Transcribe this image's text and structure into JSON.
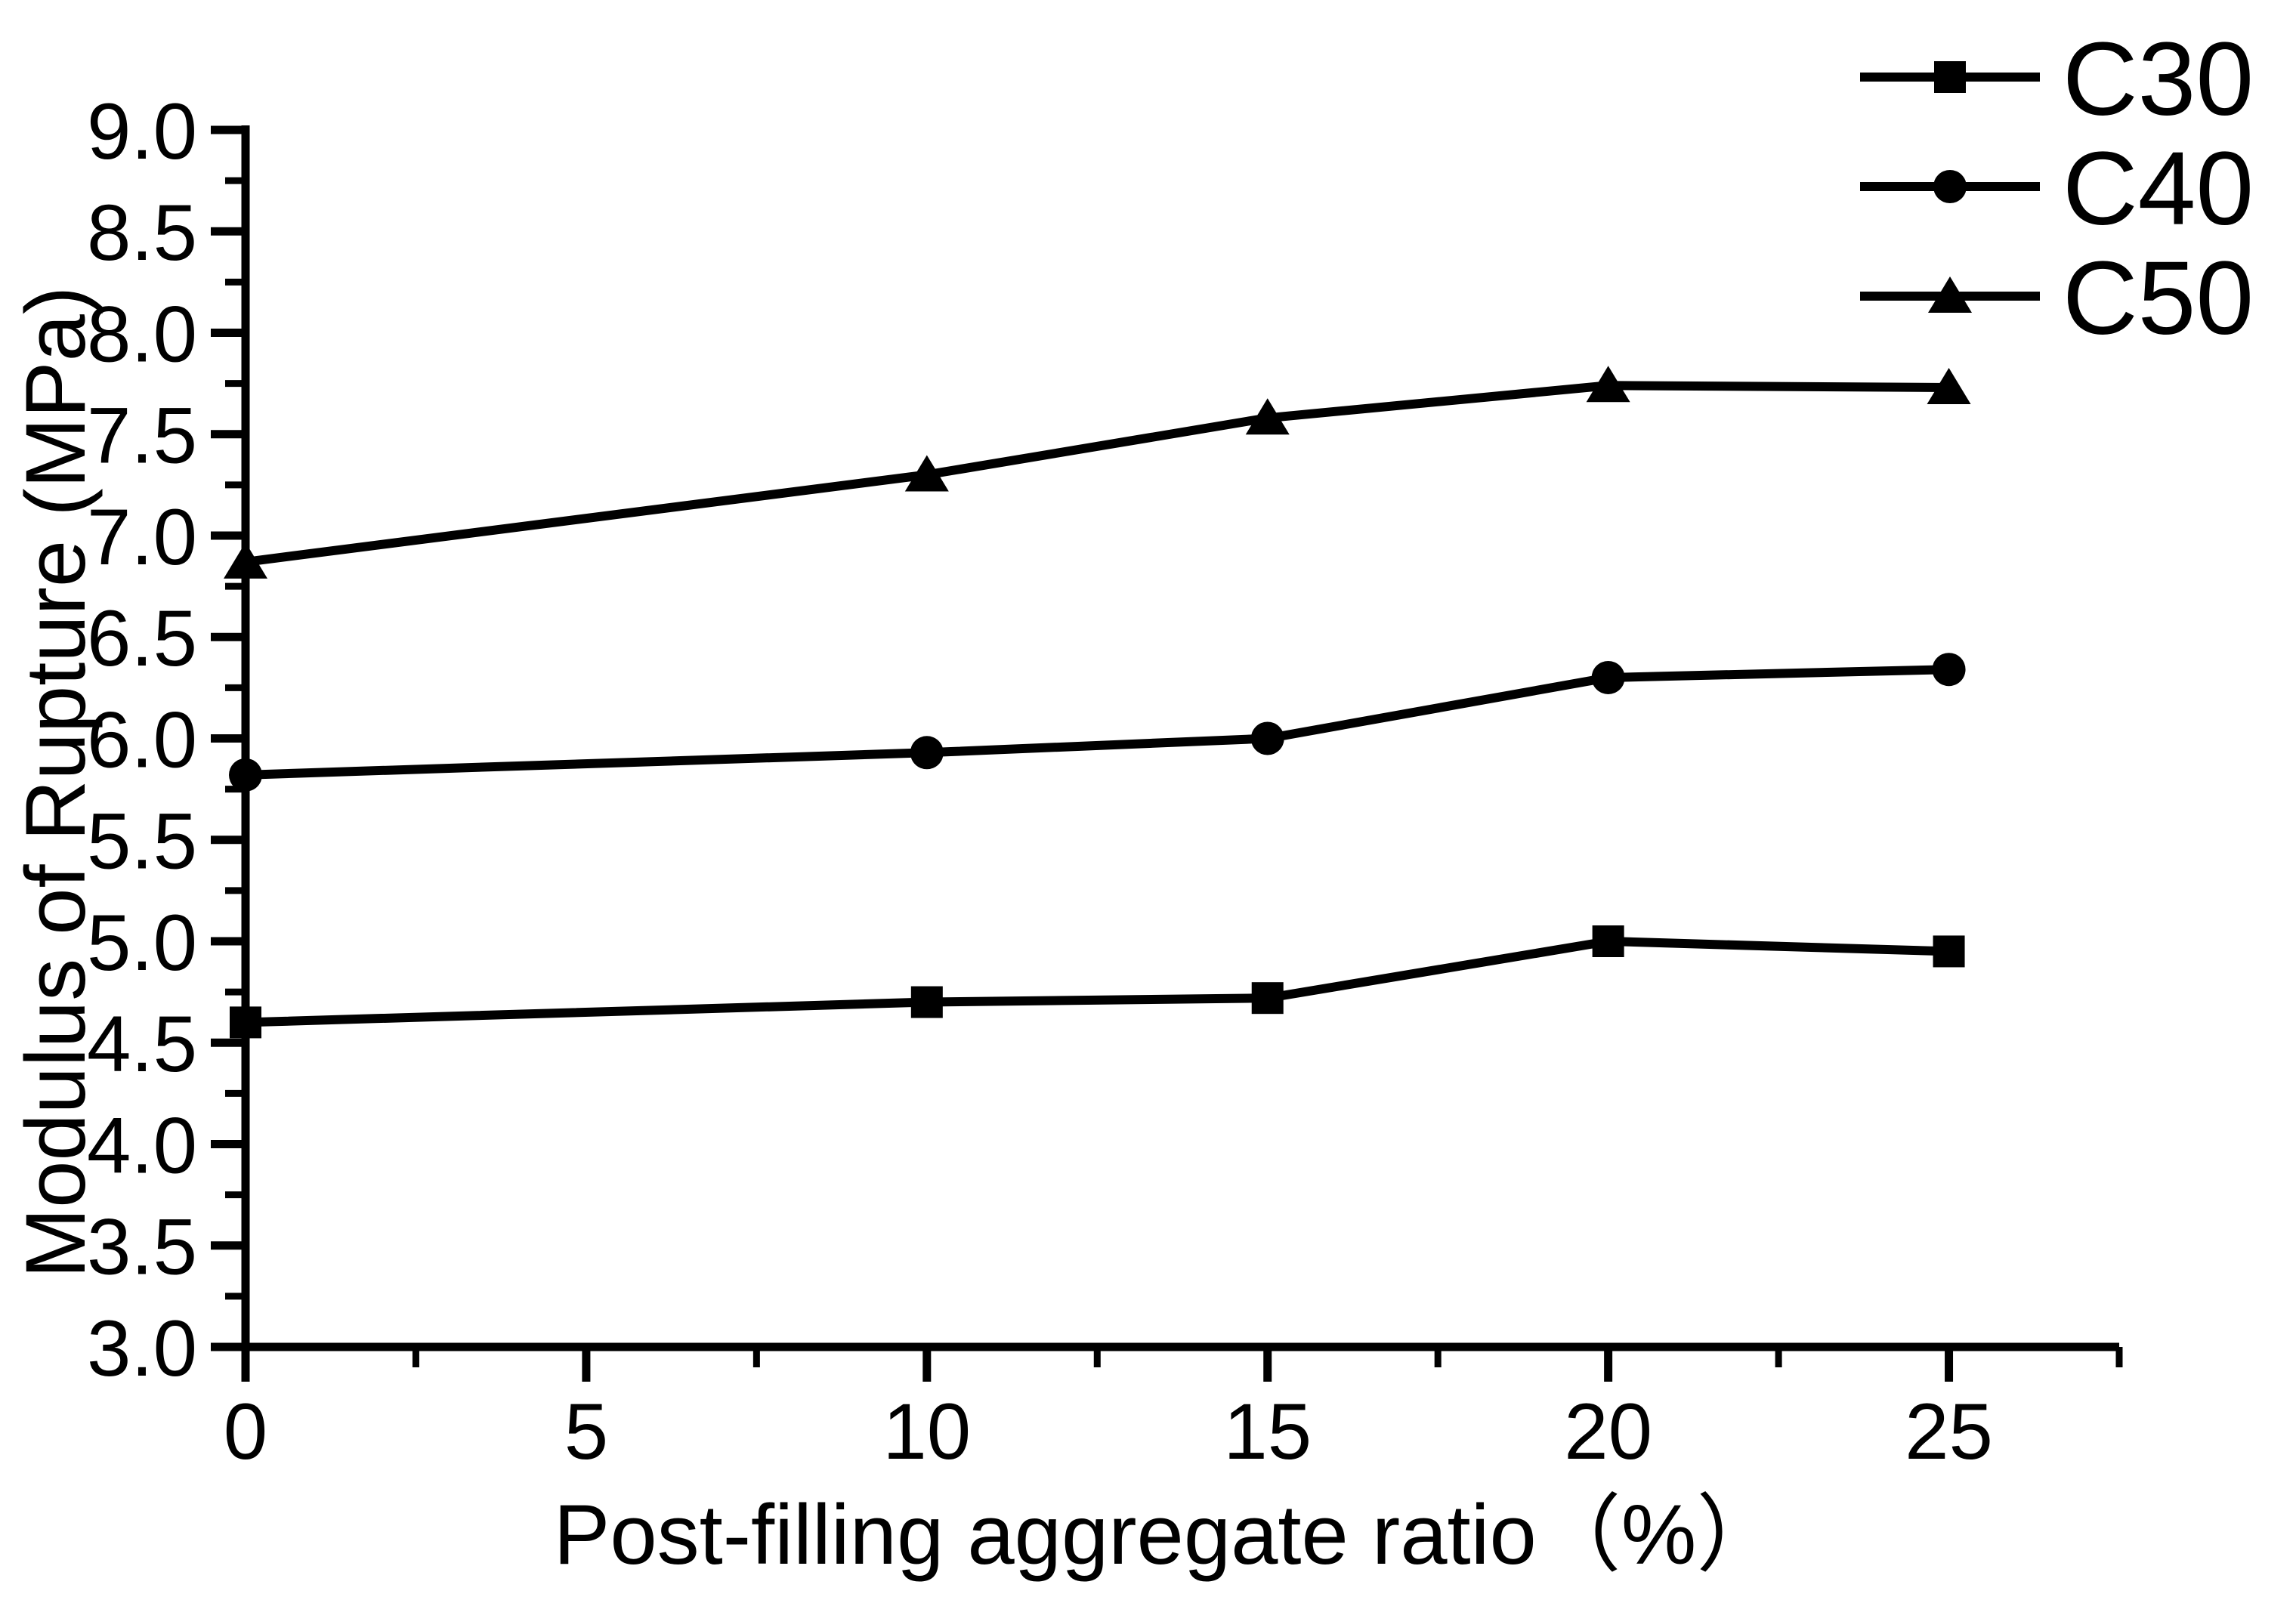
{
  "page": {
    "background": "#ffffff",
    "foreground": "#000000"
  },
  "chart_data": {
    "type": "line",
    "title": "",
    "xlabel": "Post-filling aggregate ratio（%）",
    "ylabel": "Modulus of Rupture (MPa)",
    "x": [
      0,
      10,
      15,
      20,
      25
    ],
    "series": [
      {
        "name": "C30",
        "marker": "square",
        "color": "#000000",
        "values": [
          4.6,
          4.7,
          4.72,
          5.0,
          4.95
        ]
      },
      {
        "name": "C40",
        "marker": "circle",
        "color": "#000000",
        "values": [
          5.82,
          5.93,
          6.0,
          6.3,
          6.34
        ]
      },
      {
        "name": "C50",
        "marker": "triangle",
        "color": "#000000",
        "values": [
          6.87,
          7.3,
          7.58,
          7.74,
          7.73
        ]
      }
    ],
    "x_axis": {
      "min": 0,
      "max": 27.5,
      "major_step": 5,
      "minor_step": 2.5,
      "label_max": 25,
      "tick_labels": [
        "0",
        "5",
        "10",
        "15",
        "20",
        "25"
      ]
    },
    "y_axis": {
      "min": 3.0,
      "max": 9.0,
      "major_step": 0.5,
      "minor_step": 0.25,
      "tick_labels": [
        "3.0",
        "3.5",
        "4.0",
        "4.5",
        "5.0",
        "5.5",
        "6.0",
        "6.5",
        "7.0",
        "7.5",
        "8.0",
        "8.5",
        "9.0"
      ]
    },
    "legend": {
      "position": "top-right",
      "entries": [
        "C30",
        "C40",
        "C50"
      ]
    },
    "grid": false,
    "axis_color": "#000000",
    "background": "#ffffff"
  }
}
